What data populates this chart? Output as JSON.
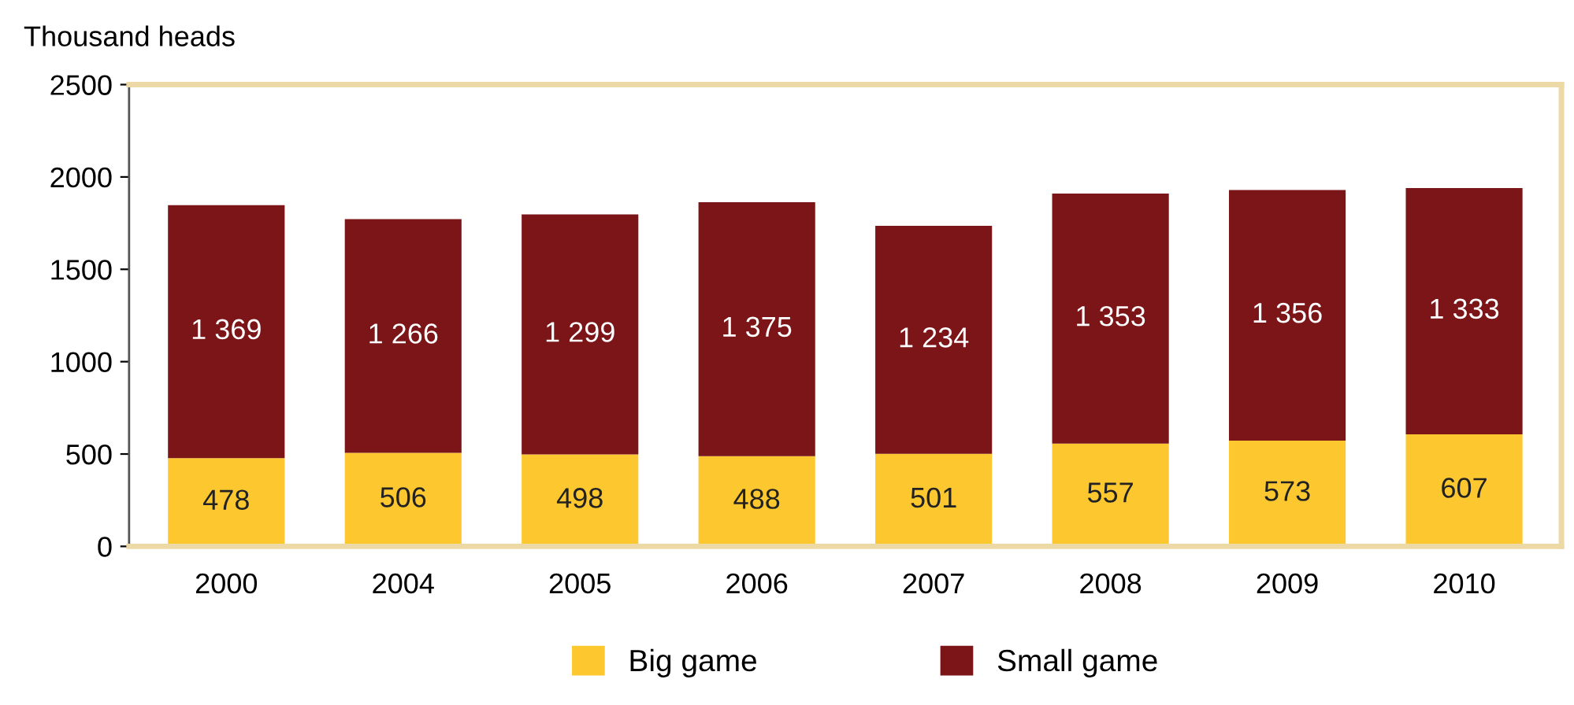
{
  "chart_data": {
    "type": "bar",
    "ylabel": "Thousand heads",
    "stacked": true,
    "categories": [
      "2000",
      "2004",
      "2005",
      "2006",
      "2007",
      "2008",
      "2009",
      "2010"
    ],
    "series": [
      {
        "name": "Big game",
        "color": "#fdc82f",
        "values": [
          478,
          506,
          498,
          488,
          501,
          557,
          573,
          607
        ],
        "value_labels": [
          "478",
          "506",
          "498",
          "488",
          "501",
          "557",
          "573",
          "607"
        ]
      },
      {
        "name": "Small game",
        "color": "#7b1517",
        "values": [
          1369,
          1266,
          1299,
          1375,
          1234,
          1353,
          1356,
          1333
        ],
        "value_labels": [
          "1 369",
          "1 266",
          "1 299",
          "1 375",
          "1 234",
          "1 353",
          "1 356",
          "1 333"
        ]
      }
    ],
    "ylim": [
      0,
      2500
    ],
    "yticks": [
      0,
      500,
      1000,
      1500,
      2000,
      2500
    ],
    "grid": false,
    "legend": "bottom"
  }
}
